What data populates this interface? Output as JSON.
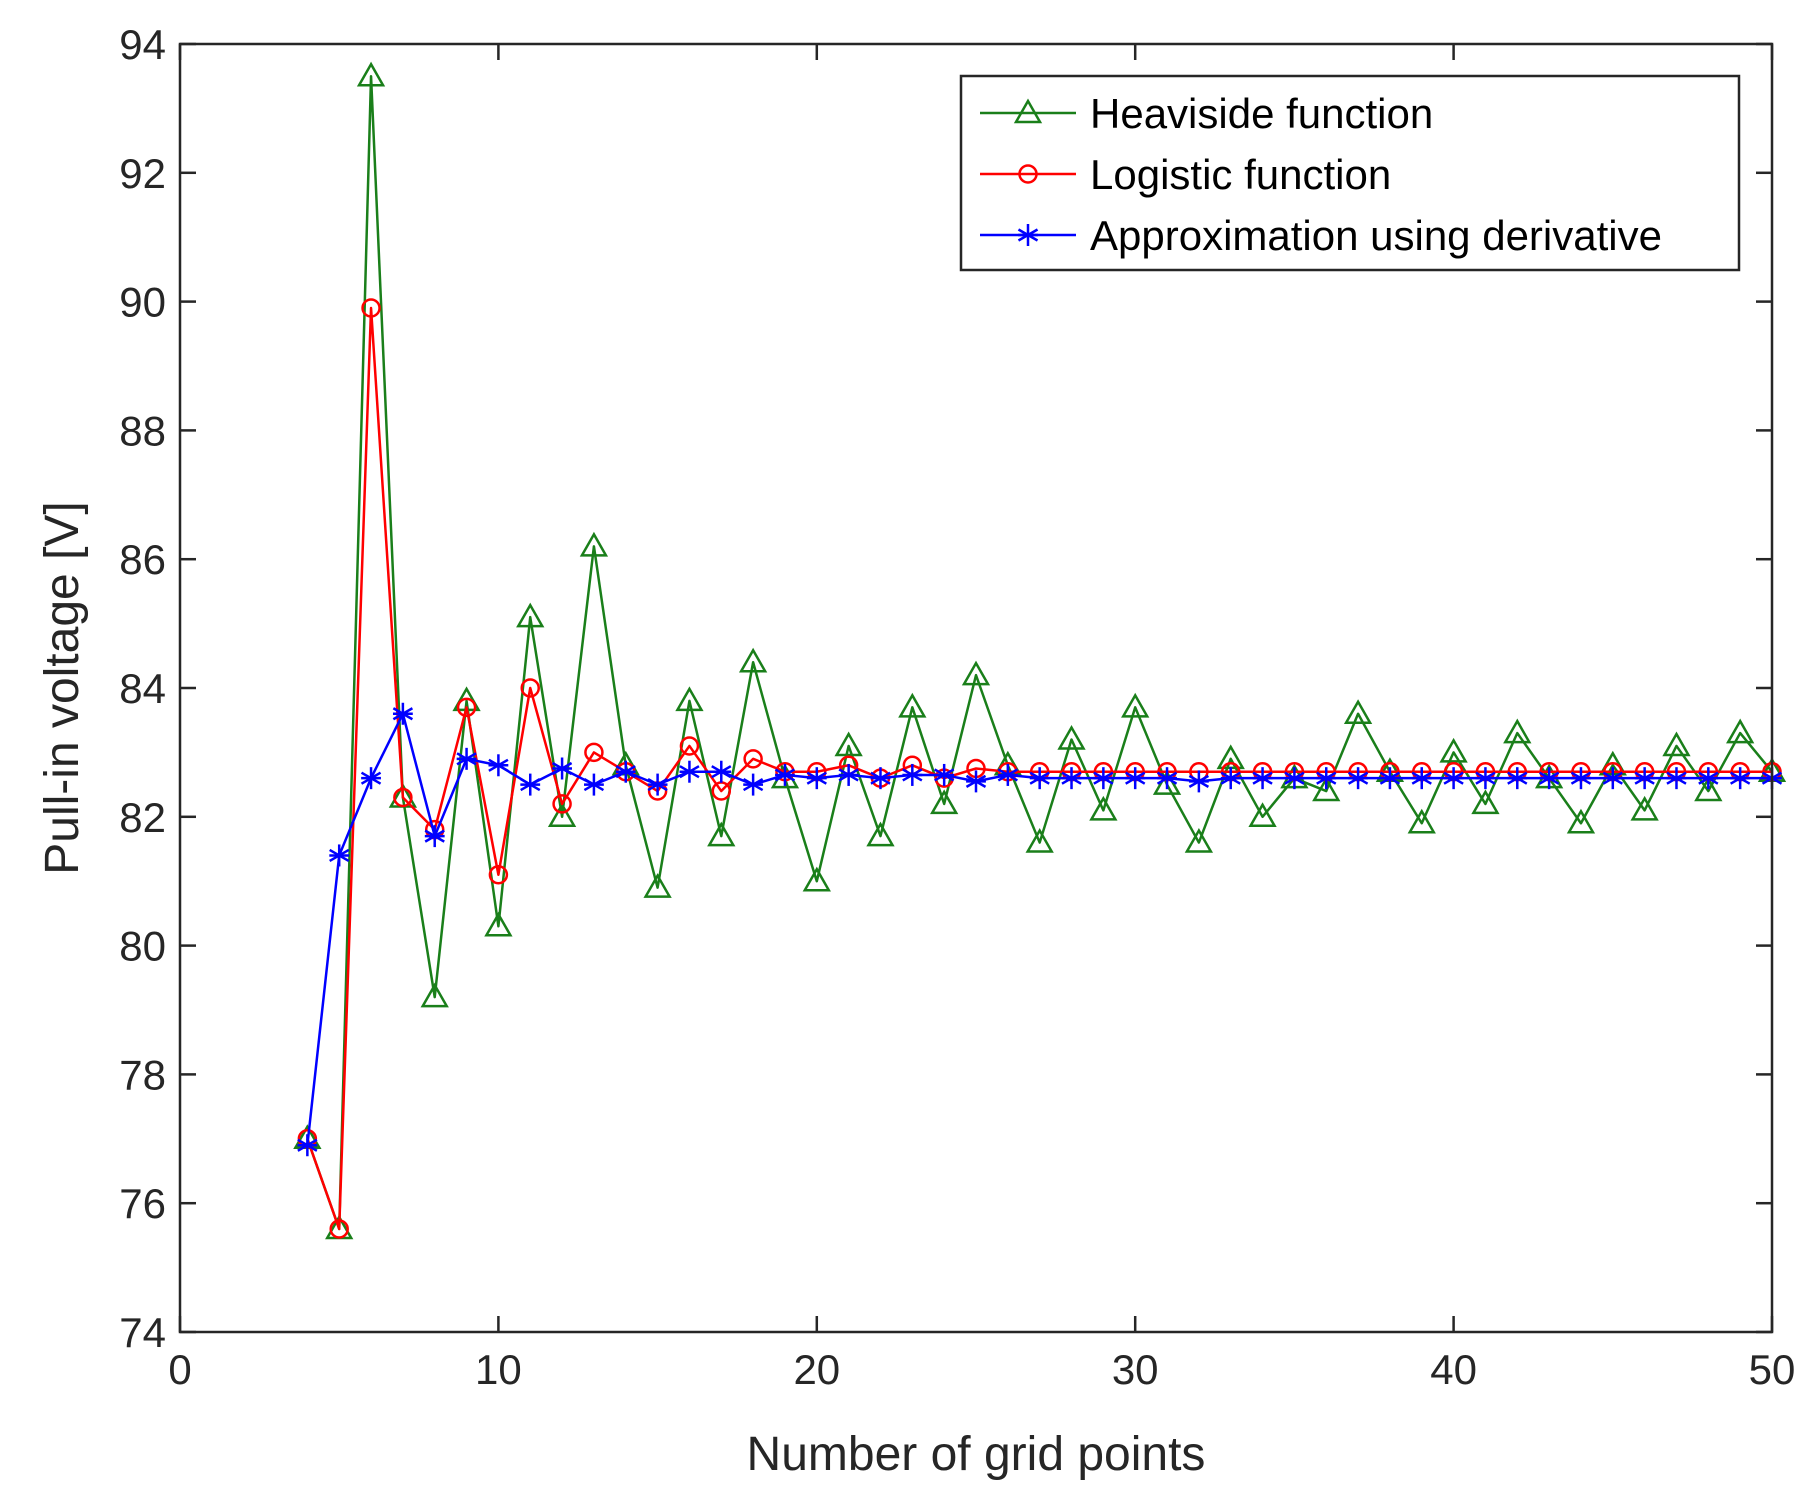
{
  "chart_data": {
    "type": "line",
    "title": "",
    "xlabel": "Number of grid points",
    "ylabel": "Pull-in voltage [V]",
    "xlim": [
      0,
      50
    ],
    "ylim": [
      74,
      94
    ],
    "xticks": [
      0,
      10,
      20,
      30,
      40,
      50
    ],
    "yticks": [
      74,
      76,
      78,
      80,
      82,
      84,
      86,
      88,
      90,
      92,
      94
    ],
    "grid": false,
    "legend_position": "top-right",
    "x": [
      4,
      5,
      6,
      7,
      8,
      9,
      10,
      11,
      12,
      13,
      14,
      15,
      16,
      17,
      18,
      19,
      20,
      21,
      22,
      23,
      24,
      25,
      26,
      27,
      28,
      29,
      30,
      31,
      32,
      33,
      34,
      35,
      36,
      37,
      38,
      39,
      40,
      41,
      42,
      43,
      44,
      45,
      46,
      47,
      48,
      49,
      50
    ],
    "series": [
      {
        "name": "Heaviside function",
        "color": "#1a7f1a",
        "marker": "triangle",
        "values": [
          77.0,
          75.6,
          93.5,
          82.3,
          79.2,
          83.8,
          80.3,
          85.1,
          82.0,
          86.2,
          82.8,
          80.9,
          83.8,
          81.7,
          84.4,
          82.6,
          81.0,
          83.1,
          81.7,
          83.7,
          82.2,
          84.2,
          82.8,
          81.6,
          83.2,
          82.1,
          83.7,
          82.5,
          81.6,
          82.9,
          82.0,
          82.6,
          82.4,
          83.6,
          82.7,
          81.9,
          83.0,
          82.2,
          83.3,
          82.6,
          81.9,
          82.8,
          82.1,
          83.1,
          82.4,
          83.3,
          82.7
        ]
      },
      {
        "name": "Logistic function",
        "color": "#ff0000",
        "marker": "circle",
        "values": [
          77.0,
          75.6,
          89.9,
          82.3,
          81.8,
          83.7,
          81.1,
          84.0,
          82.2,
          83.0,
          82.7,
          82.4,
          83.1,
          82.4,
          82.9,
          82.7,
          82.7,
          82.8,
          82.6,
          82.8,
          82.6,
          82.75,
          82.7,
          82.7,
          82.7,
          82.7,
          82.7,
          82.7,
          82.7,
          82.7,
          82.7,
          82.7,
          82.7,
          82.7,
          82.7,
          82.7,
          82.7,
          82.7,
          82.7,
          82.7,
          82.7,
          82.7,
          82.7,
          82.7,
          82.7,
          82.7,
          82.7
        ]
      },
      {
        "name": "Approximation using derivative",
        "color": "#0000ff",
        "marker": "asterisk",
        "values": [
          76.9,
          81.4,
          82.6,
          83.6,
          81.7,
          82.9,
          82.8,
          82.5,
          82.75,
          82.5,
          82.7,
          82.5,
          82.7,
          82.7,
          82.5,
          82.65,
          82.6,
          82.65,
          82.6,
          82.65,
          82.65,
          82.55,
          82.65,
          82.6,
          82.6,
          82.6,
          82.6,
          82.6,
          82.55,
          82.6,
          82.6,
          82.6,
          82.6,
          82.6,
          82.6,
          82.6,
          82.6,
          82.6,
          82.6,
          82.6,
          82.6,
          82.6,
          82.6,
          82.6,
          82.6,
          82.6,
          82.6
        ]
      }
    ]
  }
}
